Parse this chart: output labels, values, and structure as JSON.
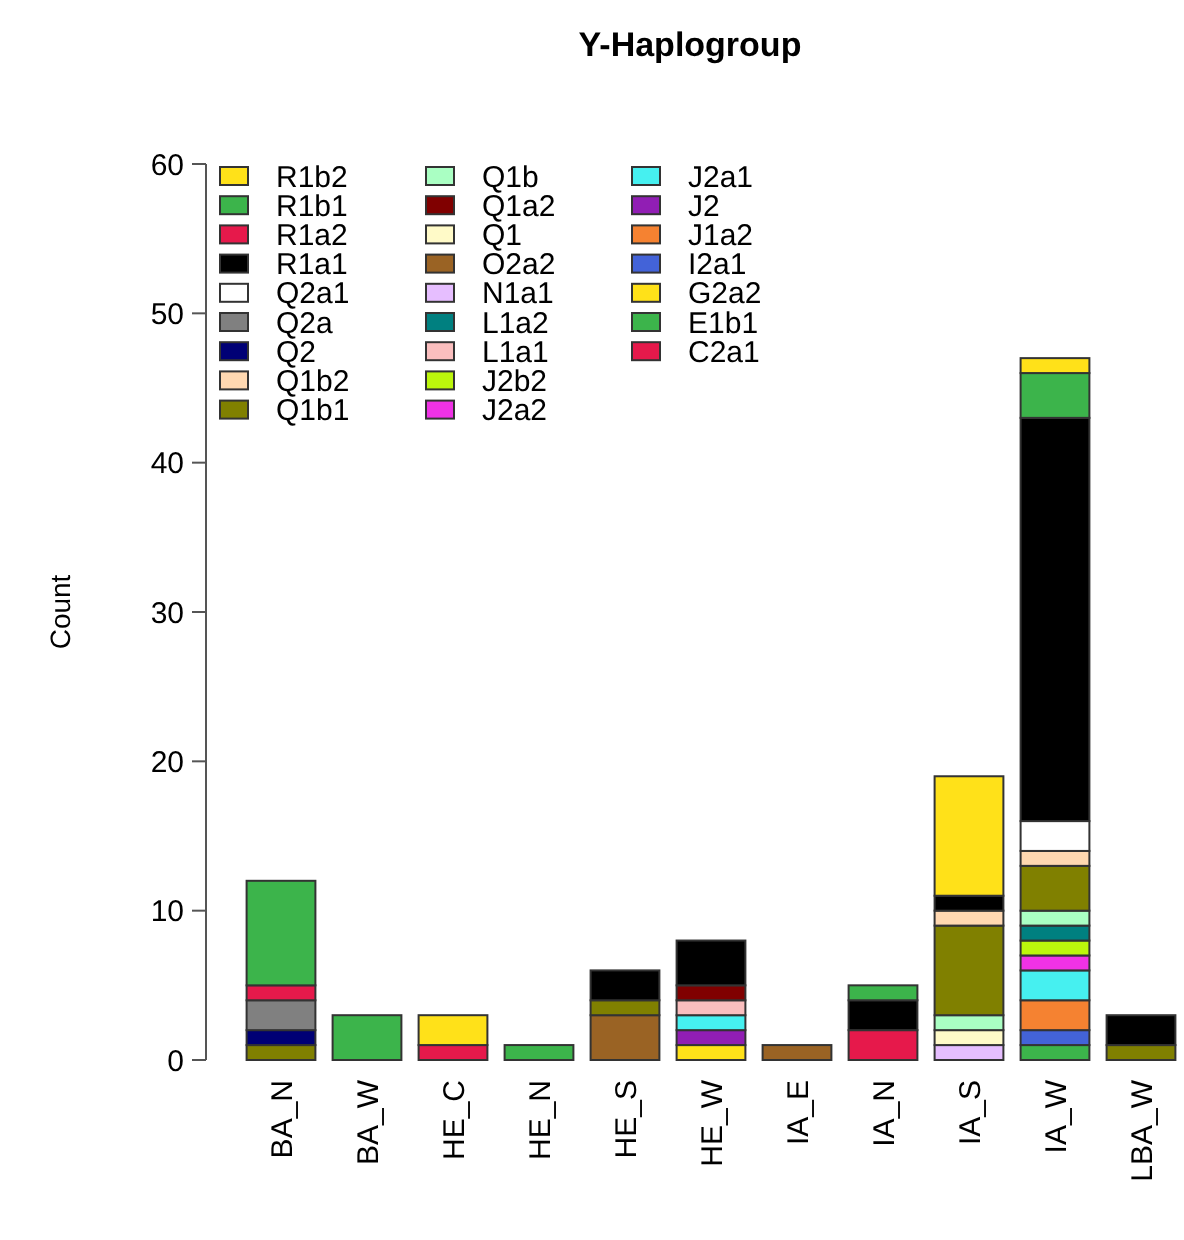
{
  "chart_data": {
    "type": "bar",
    "title": "Y-Haplogroup",
    "ylabel": "Count",
    "stacked": true,
    "legend": "top left",
    "grid": false,
    "categories": [
      "BA_N",
      "BA_W",
      "HE_C",
      "HE_N",
      "HE_S",
      "HE_W",
      "IA_E",
      "IA_N",
      "IA_S",
      "IA_W",
      "LBA_W"
    ],
    "ylim": [
      0,
      60
    ],
    "yticks": [
      0,
      10,
      20,
      30,
      40,
      50,
      60
    ],
    "series": [
      {
        "name": "C2a1",
        "color": "#e6194b",
        "values": [
          0,
          0,
          0,
          0,
          0,
          0,
          0,
          2,
          0,
          0,
          0
        ]
      },
      {
        "name": "E1b1",
        "color": "#3cb44b",
        "values": [
          0,
          0,
          0,
          0,
          0,
          0,
          0,
          0,
          0,
          1,
          0
        ]
      },
      {
        "name": "G2a2",
        "color": "#ffe119",
        "values": [
          0,
          0,
          0,
          0,
          0,
          1,
          0,
          0,
          0,
          0,
          0
        ]
      },
      {
        "name": "I2a1",
        "color": "#4363d8",
        "values": [
          0,
          0,
          0,
          0,
          0,
          0,
          0,
          0,
          0,
          1,
          0
        ]
      },
      {
        "name": "J1a2",
        "color": "#f58231",
        "values": [
          0,
          0,
          0,
          0,
          0,
          0,
          0,
          0,
          0,
          2,
          0
        ]
      },
      {
        "name": "J2",
        "color": "#911eb4",
        "values": [
          0,
          0,
          0,
          0,
          0,
          1,
          0,
          0,
          0,
          0,
          0
        ]
      },
      {
        "name": "J2a1",
        "color": "#46f0f0",
        "values": [
          0,
          0,
          0,
          0,
          0,
          1,
          0,
          0,
          0,
          2,
          0
        ]
      },
      {
        "name": "J2a2",
        "color": "#f032e6",
        "values": [
          0,
          0,
          0,
          0,
          0,
          0,
          0,
          0,
          0,
          1,
          0
        ]
      },
      {
        "name": "J2b2",
        "color": "#bcf60c",
        "values": [
          0,
          0,
          0,
          0,
          0,
          0,
          0,
          0,
          0,
          1,
          0
        ]
      },
      {
        "name": "L1a1",
        "color": "#fabebe",
        "values": [
          0,
          0,
          0,
          0,
          0,
          1,
          0,
          0,
          0,
          0,
          0
        ]
      },
      {
        "name": "L1a2",
        "color": "#008080",
        "values": [
          0,
          0,
          0,
          0,
          0,
          0,
          0,
          0,
          0,
          1,
          0
        ]
      },
      {
        "name": "N1a1",
        "color": "#e6beff",
        "values": [
          0,
          0,
          0,
          0,
          0,
          0,
          0,
          0,
          1,
          0,
          0
        ]
      },
      {
        "name": "O2a2",
        "color": "#9a6324",
        "values": [
          0,
          0,
          0,
          0,
          3,
          0,
          1,
          0,
          0,
          0,
          0
        ]
      },
      {
        "name": "Q1",
        "color": "#fffac8",
        "values": [
          0,
          0,
          0,
          0,
          0,
          0,
          0,
          0,
          1,
          0,
          0
        ]
      },
      {
        "name": "Q1a2",
        "color": "#800000",
        "values": [
          0,
          0,
          0,
          0,
          0,
          1,
          0,
          0,
          0,
          0,
          0
        ]
      },
      {
        "name": "Q1b",
        "color": "#aaffc3",
        "values": [
          0,
          0,
          0,
          0,
          0,
          0,
          0,
          0,
          1,
          1,
          0
        ]
      },
      {
        "name": "Q1b1",
        "color": "#808000",
        "values": [
          1,
          0,
          0,
          0,
          1,
          0,
          0,
          0,
          6,
          3,
          1
        ]
      },
      {
        "name": "Q1b2",
        "color": "#ffd8b1",
        "values": [
          0,
          0,
          0,
          0,
          0,
          0,
          0,
          0,
          1,
          1,
          0
        ]
      },
      {
        "name": "Q2",
        "color": "#000075",
        "values": [
          1,
          0,
          0,
          0,
          0,
          0,
          0,
          0,
          0,
          0,
          0
        ]
      },
      {
        "name": "Q2a",
        "color": "#808080",
        "values": [
          2,
          0,
          0,
          0,
          0,
          0,
          0,
          0,
          0,
          0,
          0
        ]
      },
      {
        "name": "Q2a1",
        "color": "#ffffff",
        "values": [
          0,
          0,
          0,
          0,
          0,
          0,
          0,
          0,
          0,
          2,
          0
        ]
      },
      {
        "name": "R1a1",
        "color": "#000000",
        "values": [
          0,
          0,
          0,
          0,
          2,
          3,
          0,
          2,
          1,
          27,
          2
        ]
      },
      {
        "name": "R1a2",
        "color": "#e6194b",
        "values": [
          1,
          0,
          1,
          0,
          0,
          0,
          0,
          0,
          0,
          0,
          0
        ]
      },
      {
        "name": "R1b1",
        "color": "#3cb44b",
        "values": [
          7,
          3,
          0,
          1,
          0,
          0,
          0,
          1,
          0,
          3,
          0
        ]
      },
      {
        "name": "R1b2",
        "color": "#ffe119",
        "values": [
          0,
          0,
          2,
          0,
          0,
          0,
          0,
          0,
          8,
          1,
          0
        ]
      }
    ]
  }
}
